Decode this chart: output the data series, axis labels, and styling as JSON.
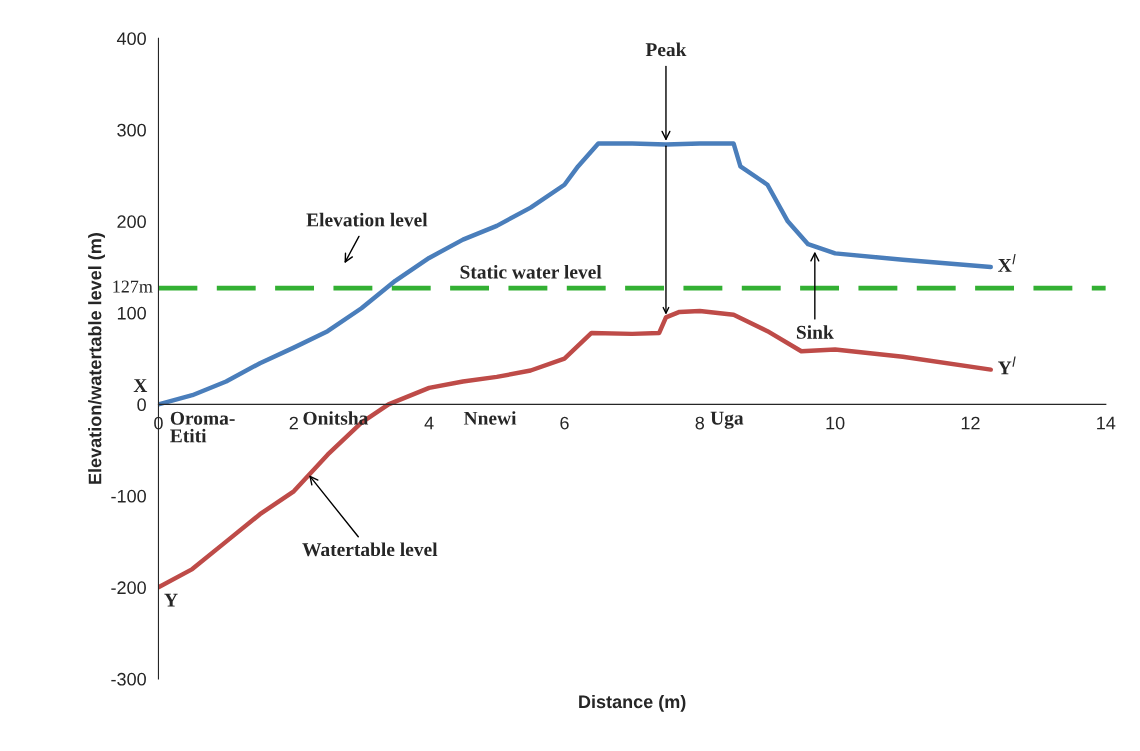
{
  "chart_data": {
    "type": "line",
    "xlabel": "Distance (m)",
    "ylabel": "Elevation/watertable level (m)",
    "xlim": [
      0,
      14
    ],
    "ylim": [
      -300,
      400
    ],
    "xticks": [
      0,
      2,
      4,
      6,
      8,
      10,
      12,
      14
    ],
    "yticks": [
      -300,
      -200,
      -100,
      0,
      100,
      200,
      300,
      400
    ],
    "grid": false,
    "legend": false,
    "marker": "none",
    "line_style": "solid",
    "series": [
      {
        "color": "#4a7ebb",
        "x": [
          0,
          0.5,
          1,
          1.5,
          2,
          2.5,
          3,
          3.5,
          4,
          4.5,
          5,
          5.5,
          6,
          6.2,
          6.5,
          7,
          7.5,
          8,
          8.5,
          8.6,
          9,
          9.3,
          9.6,
          10,
          11,
          12.3
        ],
        "values": [
          0,
          10,
          25,
          45,
          62,
          80,
          105,
          135,
          160,
          180,
          195,
          215,
          240,
          260,
          285,
          285,
          284,
          285,
          285,
          260,
          240,
          200,
          175,
          165,
          158,
          150
        ]
      },
      {
        "color": "#be4b48",
        "x": [
          0,
          0.5,
          1,
          1.5,
          2,
          2.5,
          3,
          3.4,
          4,
          4.5,
          5,
          5.5,
          6,
          6.4,
          7,
          7.4,
          7.5,
          7.7,
          8,
          8.5,
          9,
          9.5,
          10,
          11,
          12.3
        ],
        "values": [
          -200,
          -180,
          -150,
          -120,
          -95,
          -55,
          -20,
          0,
          18,
          25,
          30,
          37,
          50,
          78,
          77,
          78,
          95,
          101,
          102,
          98,
          80,
          58,
          60,
          52,
          38
        ]
      }
    ],
    "ref_lines": [
      {
        "axis": "y",
        "value": 127,
        "label": "127m",
        "color": "#33b033",
        "line_style": "dashed"
      }
    ],
    "annotations": [
      {
        "text": "Peak",
        "x": 7.5,
        "y": 285
      },
      "Elevation level",
      {
        "text": "Static water level",
        "x": 5.5,
        "y": 127
      },
      {
        "text": "Sink",
        "x": 9.7,
        "y": 170
      },
      {
        "text": "Watertable level",
        "x": 2.2,
        "y": -75
      },
      {
        "text": "X",
        "x": 0,
        "y": 0
      },
      {
        "text": "Y",
        "x": 0,
        "y": -200
      },
      {
        "text": "X$^{l}$",
        "x": 12.3,
        "y": 150
      },
      {
        "text": "Y$^{l}$",
        "x": 12.3,
        "y": 38
      },
      "Oroma-\nEtiti",
      "Onitsha",
      "Nnewi",
      "Uga"
    ]
  }
}
